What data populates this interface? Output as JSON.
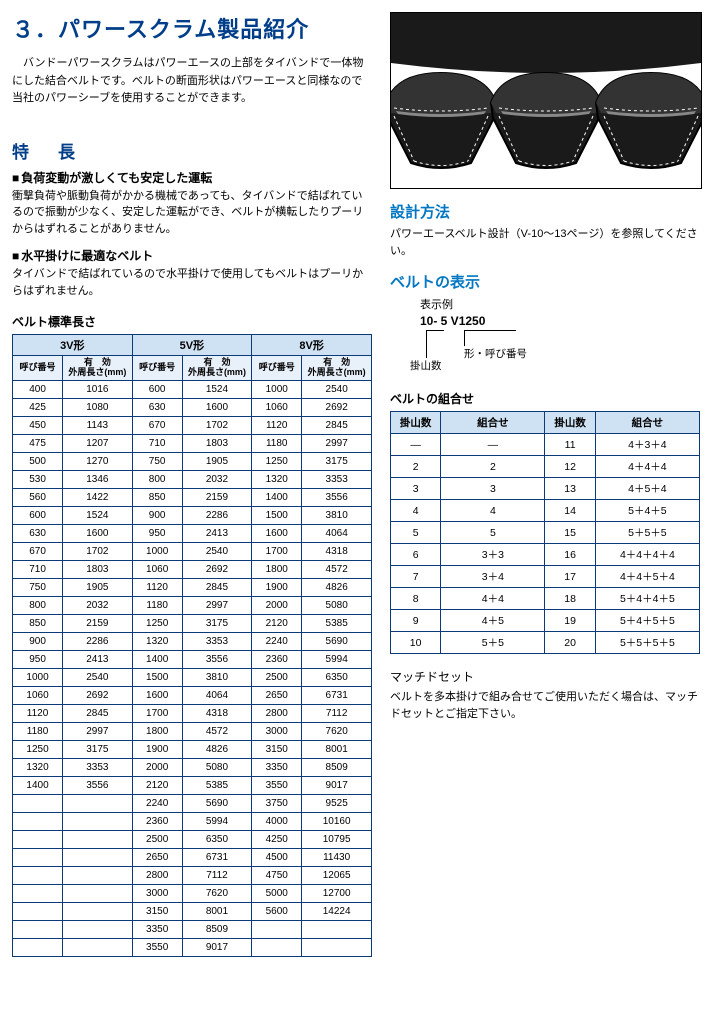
{
  "title": "３．パワースクラム製品紹介",
  "intro": "バンドーパワースクラムはパワーエースの上部をタイバンドで一体物にした結合ベルトです。ベルトの断面形状はパワーエースと同様なので当社のパワーシーブを使用することができます。",
  "features_heading": "特　長",
  "f1_title": "負荷変動が激しくても安定した運転",
  "f1_body": "衝撃負荷や脈動負荷がかかる機械であっても、タイバンドで結ばれているので振動が少なく、安定した運転ができ、ベルトが横転したりプーリからはずれることがありません。",
  "f2_title": "水平掛けに最適なベルト",
  "f2_body": "タイバンドで結ばれているので水平掛けで使用してもベルトはプーリからはずれません。",
  "len_heading": "ベルト標準長さ",
  "len_groups": [
    "3V形",
    "5V形",
    "8V形"
  ],
  "len_sub_no": "呼び番号",
  "len_sub_len": "有　効\n外周長さ(mm)",
  "len_rows": [
    [
      "400",
      "1016",
      "600",
      "1524",
      "1000",
      "2540"
    ],
    [
      "425",
      "1080",
      "630",
      "1600",
      "1060",
      "2692"
    ],
    [
      "450",
      "1143",
      "670",
      "1702",
      "1120",
      "2845"
    ],
    [
      "475",
      "1207",
      "710",
      "1803",
      "1180",
      "2997"
    ],
    [
      "500",
      "1270",
      "750",
      "1905",
      "1250",
      "3175"
    ],
    [
      "530",
      "1346",
      "800",
      "2032",
      "1320",
      "3353"
    ],
    [
      "560",
      "1422",
      "850",
      "2159",
      "1400",
      "3556"
    ],
    [
      "600",
      "1524",
      "900",
      "2286",
      "1500",
      "3810"
    ],
    [
      "630",
      "1600",
      "950",
      "2413",
      "1600",
      "4064"
    ],
    [
      "670",
      "1702",
      "1000",
      "2540",
      "1700",
      "4318"
    ],
    [
      "710",
      "1803",
      "1060",
      "2692",
      "1800",
      "4572"
    ],
    [
      "750",
      "1905",
      "1120",
      "2845",
      "1900",
      "4826"
    ],
    [
      "800",
      "2032",
      "1180",
      "2997",
      "2000",
      "5080"
    ],
    [
      "850",
      "2159",
      "1250",
      "3175",
      "2120",
      "5385"
    ],
    [
      "900",
      "2286",
      "1320",
      "3353",
      "2240",
      "5690"
    ],
    [
      "950",
      "2413",
      "1400",
      "3556",
      "2360",
      "5994"
    ],
    [
      "1000",
      "2540",
      "1500",
      "3810",
      "2500",
      "6350"
    ],
    [
      "1060",
      "2692",
      "1600",
      "4064",
      "2650",
      "6731"
    ],
    [
      "1120",
      "2845",
      "1700",
      "4318",
      "2800",
      "7112"
    ],
    [
      "1180",
      "2997",
      "1800",
      "4572",
      "3000",
      "7620"
    ],
    [
      "1250",
      "3175",
      "1900",
      "4826",
      "3150",
      "8001"
    ],
    [
      "1320",
      "3353",
      "2000",
      "5080",
      "3350",
      "8509"
    ],
    [
      "1400",
      "3556",
      "2120",
      "5385",
      "3550",
      "9017"
    ],
    [
      "",
      "",
      "2240",
      "5690",
      "3750",
      "9525"
    ],
    [
      "",
      "",
      "2360",
      "5994",
      "4000",
      "10160"
    ],
    [
      "",
      "",
      "2500",
      "6350",
      "4250",
      "10795"
    ],
    [
      "",
      "",
      "2650",
      "6731",
      "4500",
      "11430"
    ],
    [
      "",
      "",
      "2800",
      "7112",
      "4750",
      "12065"
    ],
    [
      "",
      "",
      "3000",
      "7620",
      "5000",
      "12700"
    ],
    [
      "",
      "",
      "3150",
      "8001",
      "5600",
      "14224"
    ],
    [
      "",
      "",
      "3350",
      "8509",
      "",
      ""
    ],
    [
      "",
      "",
      "3550",
      "9017",
      "",
      ""
    ]
  ],
  "design_heading": "設計方法",
  "design_body": "パワーエースベルト設計（V-10～13ページ）を参照してください。",
  "display_heading": "ベルトの表示",
  "display_ex_label": "表示例",
  "display_code": "10- 5  V1250",
  "display_kake": "掛山数",
  "display_katachi": "形・呼び番号",
  "combo_heading": "ベルトの組合せ",
  "combo_cols": [
    "掛山数",
    "組合せ",
    "掛山数",
    "組合せ"
  ],
  "combo_rows": [
    [
      "—",
      "—",
      "11",
      "4＋3＋4"
    ],
    [
      "2",
      "2",
      "12",
      "4＋4＋4"
    ],
    [
      "3",
      "3",
      "13",
      "4＋5＋4"
    ],
    [
      "4",
      "4",
      "14",
      "5＋4＋5"
    ],
    [
      "5",
      "5",
      "15",
      "5＋5＋5"
    ],
    [
      "6",
      "3＋3",
      "16",
      "4＋4＋4＋4"
    ],
    [
      "7",
      "3＋4",
      "17",
      "4＋4＋5＋4"
    ],
    [
      "8",
      "4＋4",
      "18",
      "5＋4＋4＋5"
    ],
    [
      "9",
      "4＋5",
      "19",
      "5＋4＋5＋5"
    ],
    [
      "10",
      "5＋5",
      "20",
      "5＋5＋5＋5"
    ]
  ],
  "matched_heading": "マッチドセット",
  "matched_body": "ベルトを多本掛けで組み合せてご使用いただく場合は、マッチドセットとご指定下さい。",
  "colors": {
    "heading_blue": "#003e8a",
    "heading_cyan": "#0077c2",
    "table_border": "#0b3a7a",
    "table_head_bg": "#cfe2f3",
    "table_sub_bg": "#e8f0fa"
  }
}
